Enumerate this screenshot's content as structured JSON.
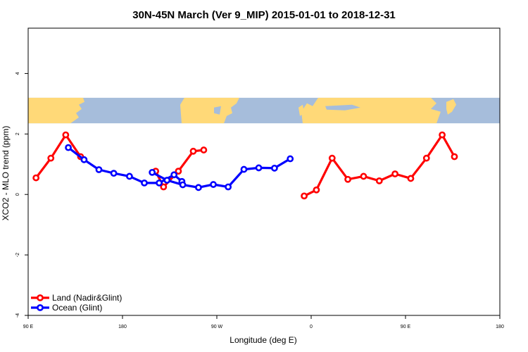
{
  "chart_data": {
    "type": "line",
    "title": "30N-45N March (Ver 9_MIP)   2015-01-01 to 2018-12-31",
    "xlabel": "Longitude (deg E)",
    "ylabel": "XCO2 - MLO trend (ppm)",
    "xlim": [
      -90,
      180
    ],
    "ylim": [
      -4,
      5.5
    ],
    "xticks": [
      {
        "value": -90,
        "label": "90 E"
      },
      {
        "value": -36,
        "label": "180"
      },
      {
        "value": 18,
        "label": "90 W"
      },
      {
        "value": 72,
        "label": "0"
      },
      {
        "value": 126,
        "label": "90 E"
      },
      {
        "value": 180,
        "label": "180"
      }
    ],
    "yticks": [
      {
        "value": -4,
        "label": "-4"
      },
      {
        "value": -2,
        "label": "-2"
      },
      {
        "value": 0,
        "label": "0"
      },
      {
        "value": 2,
        "label": "2"
      },
      {
        "value": 4,
        "label": "4"
      }
    ],
    "legend_position": "bottom-left",
    "grid": false,
    "map_strip": {
      "y_range": [
        2.35,
        3.2
      ],
      "ocean_color": "#A6BDDB",
      "land_color": "#FFD978"
    },
    "series": [
      {
        "name": "Land (Nadir&Glint)",
        "color": "#FF0000",
        "segments": [
          [
            [
              -85.5,
              0.55
            ],
            [
              -77,
              1.2
            ],
            [
              -68.5,
              1.97
            ],
            [
              -60,
              1.25
            ]
          ],
          [
            [
              -17,
              0.77
            ],
            [
              -12.5,
              0.25
            ],
            [
              -4,
              0.77
            ],
            [
              4.5,
              1.43
            ],
            [
              10.5,
              1.47
            ]
          ],
          [
            [
              68,
              -0.05
            ],
            [
              75,
              0.15
            ],
            [
              84,
              1.2
            ],
            [
              93,
              0.5
            ],
            [
              102,
              0.6
            ],
            [
              111,
              0.45
            ],
            [
              120,
              0.68
            ],
            [
              129,
              0.53
            ],
            [
              138,
              1.2
            ],
            [
              147,
              1.97
            ],
            [
              154,
              1.25
            ]
          ]
        ]
      },
      {
        "name": "Ocean (Glint)",
        "color": "#0000FF",
        "segments": [
          [
            [
              -67,
              1.55
            ],
            [
              -58,
              1.15
            ],
            [
              -49.5,
              0.82
            ],
            [
              -41,
              0.7
            ],
            [
              -32,
              0.6
            ],
            [
              -23.5,
              0.38
            ],
            [
              -15,
              0.38
            ],
            [
              -6.5,
              0.65
            ],
            [
              -2,
              0.43
            ]
          ],
          [
            [
              -19,
              0.73
            ],
            [
              -10.5,
              0.47
            ],
            [
              -1.5,
              0.32
            ],
            [
              7.5,
              0.23
            ],
            [
              16,
              0.33
            ],
            [
              24.5,
              0.25
            ],
            [
              33.5,
              0.83
            ],
            [
              42,
              0.88
            ],
            [
              51,
              0.87
            ],
            [
              60,
              1.18
            ]
          ]
        ]
      }
    ]
  }
}
